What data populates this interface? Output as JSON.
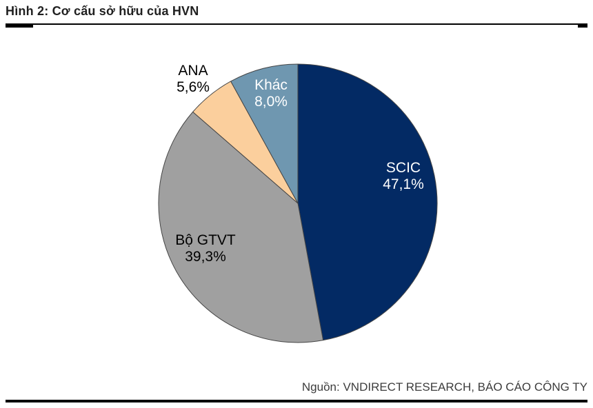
{
  "figure": {
    "title": "Hình 2: Cơ cấu sở hữu của HVN",
    "source": "Nguồn: VNDIRECT RESEARCH, BÁO CÁO CÔNG TY"
  },
  "chart_data": {
    "type": "pie",
    "title": "Cơ cấu sở hữu của HVN",
    "unit": "percent",
    "direction": "clockwise",
    "start_angle_deg": 0,
    "stroke_color": "#454545",
    "slices": [
      {
        "label": "SCIC",
        "value": 47.1,
        "value_label": "47,1%",
        "color": "#032A64",
        "label_color": "#FFFFFF"
      },
      {
        "label": "Bộ GTVT",
        "value": 39.3,
        "value_label": "39,3%",
        "color": "#A0A0A0",
        "label_color": "#000000"
      },
      {
        "label": "ANA",
        "value": 5.6,
        "value_label": "5,6%",
        "color": "#FBCF9D",
        "label_color": "#000000"
      },
      {
        "label": "Khác",
        "value": 8.0,
        "value_label": "8,0%",
        "color": "#6F97B0",
        "label_color": "#FFFFFF"
      }
    ]
  }
}
